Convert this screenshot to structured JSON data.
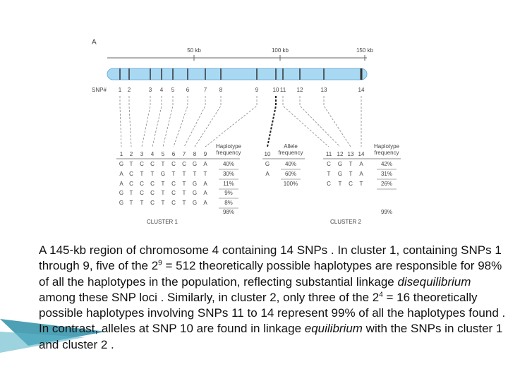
{
  "figure_label": "A",
  "ruler": [
    "50 kb",
    "100 kb",
    "150 kb"
  ],
  "snp_label": "SNP#",
  "snps": [
    "1",
    "2",
    "3",
    "4",
    "5",
    "6",
    "7",
    "8",
    "9",
    "10",
    "11",
    "12",
    "13",
    "14"
  ],
  "cluster1": {
    "columns": [
      "1",
      "2",
      "3",
      "4",
      "5",
      "6",
      "7",
      "8",
      "9"
    ],
    "freq_header": [
      "Haplotype",
      "frequency"
    ],
    "rows": [
      {
        "alleles": [
          "G",
          "T",
          "C",
          "C",
          "T",
          "C",
          "C",
          "G",
          "A"
        ],
        "freq": "40%"
      },
      {
        "alleles": [
          "A",
          "C",
          "T",
          "T",
          "G",
          "T",
          "T",
          "T",
          "T"
        ],
        "freq": "30%"
      },
      {
        "alleles": [
          "A",
          "C",
          "C",
          "C",
          "T",
          "C",
          "T",
          "G",
          "A"
        ],
        "freq": "11%"
      },
      {
        "alleles": [
          "G",
          "T",
          "C",
          "C",
          "T",
          "C",
          "T",
          "G",
          "A"
        ],
        "freq": "9%"
      },
      {
        "alleles": [
          "G",
          "T",
          "T",
          "C",
          "T",
          "C",
          "T",
          "G",
          "A"
        ],
        "freq": "8%"
      }
    ],
    "total": "98%",
    "label": "CLUSTER 1"
  },
  "snp10": {
    "column": "10",
    "freq_header": [
      "Allele",
      "frequency"
    ],
    "rows": [
      {
        "allele": "G",
        "freq": "40%"
      },
      {
        "allele": "A",
        "freq": "60%"
      }
    ],
    "total": "100%"
  },
  "cluster2": {
    "columns": [
      "11",
      "12",
      "13",
      "14"
    ],
    "freq_header": [
      "Haplotype",
      "frequency"
    ],
    "rows": [
      {
        "alleles": [
          "C",
          "G",
          "T",
          "A"
        ],
        "freq": "42%"
      },
      {
        "alleles": [
          "T",
          "G",
          "T",
          "A"
        ],
        "freq": "31%"
      },
      {
        "alleles": [
          "C",
          "T",
          "C",
          "T"
        ],
        "freq": "26%"
      }
    ],
    "total": "99%",
    "label": "CLUSTER 2"
  },
  "caption": {
    "parts": [
      "A 145-kb region of chromosome 4 containing 14 SNPs . In cluster 1, containing SNPs 1 through 9, five of the 2",
      "9",
      " = 512 theoretically possible haplotypes are responsible for 98% of all the haplotypes in the population, reflecting substantial linkage ",
      "disequilibrium",
      " among these SNP loci . Similarly, in cluster 2, only three of the 2",
      "4",
      " = 16 theoretically possible haplotypes involving SNPs 11 to 14 represent 99% of all the haplotypes found . In contrast, alleles at SNP 10 are found in linkage ",
      "equilibrium",
      " with the SNPs in cluster 1 and cluster 2 ."
    ]
  }
}
